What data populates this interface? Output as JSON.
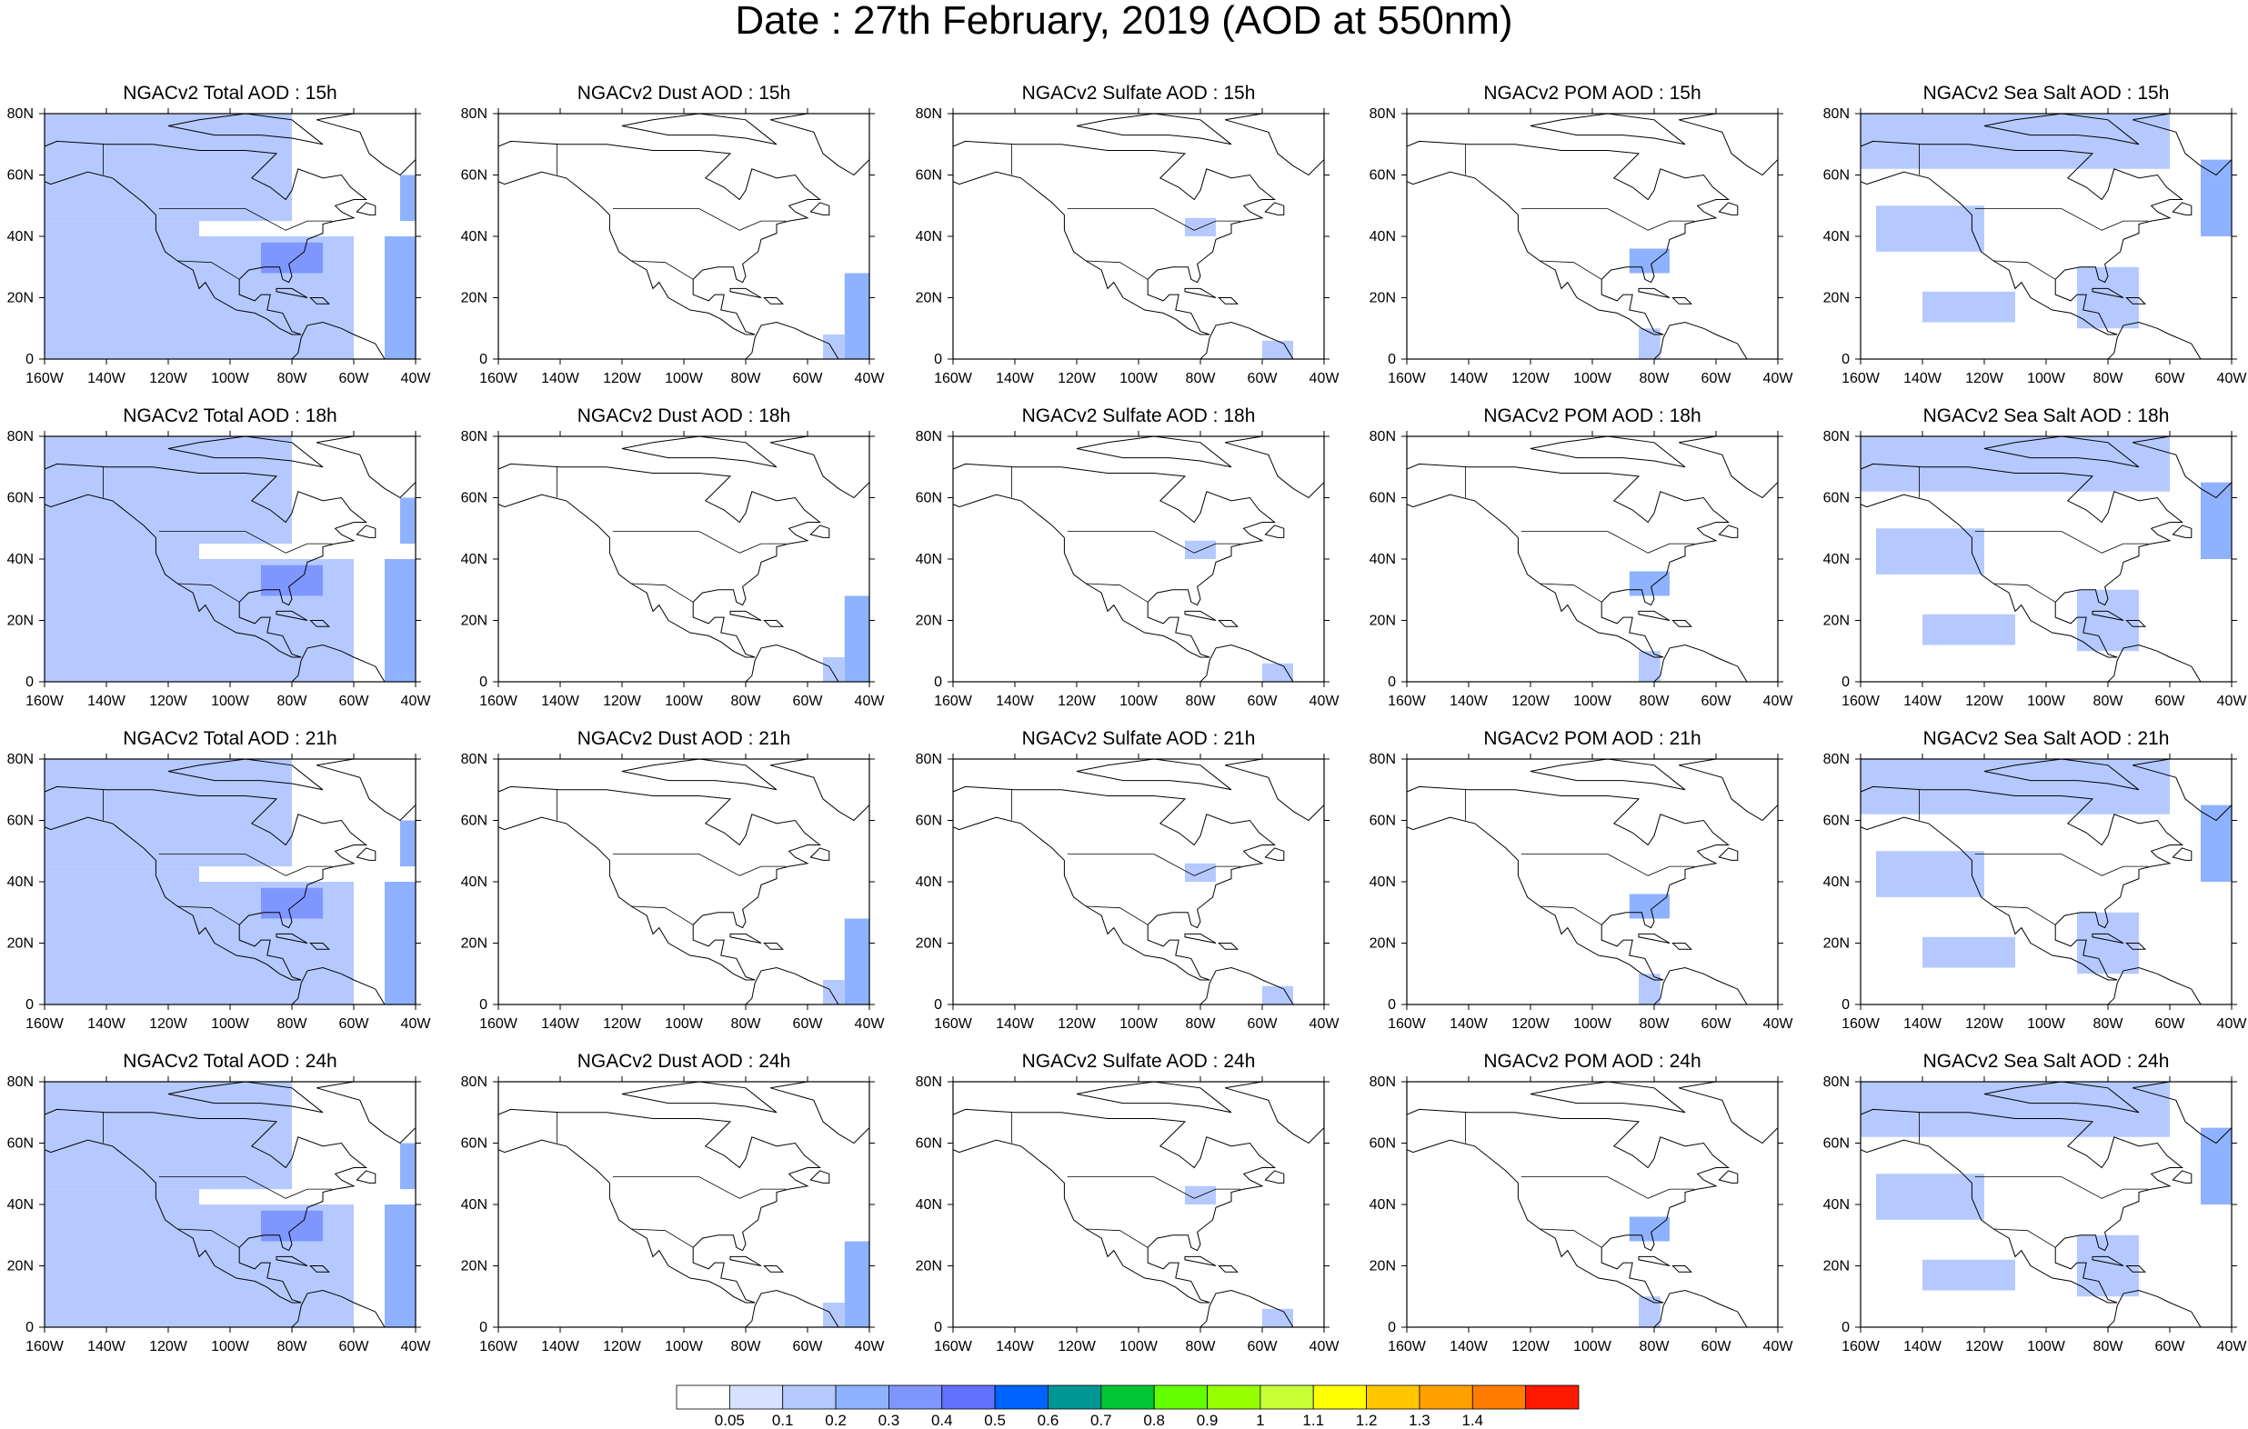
{
  "title": "Date : 27th February, 2019 (AOD at 550nm)",
  "map": {
    "lon_ticks": [
      "160W",
      "140W",
      "120W",
      "100W",
      "80W",
      "60W",
      "40W"
    ],
    "lat_ticks": [
      "0",
      "20N",
      "40N",
      "60N",
      "80N"
    ],
    "lon_range": [
      -160,
      -40
    ],
    "lat_range": [
      0,
      80
    ],
    "ocean_color": "#ffffff",
    "coast_color": "#000000"
  },
  "rows": [
    {
      "hour": "15h",
      "panels": [
        {
          "title": "NGACv2 Total AOD : 15h",
          "species": "total"
        },
        {
          "title": "NGACv2 Dust AOD : 15h",
          "species": "dust"
        },
        {
          "title": "NGACv2 Sulfate AOD : 15h",
          "species": "sulfate"
        },
        {
          "title": "NGACv2 POM AOD : 15h",
          "species": "pom"
        },
        {
          "title": "NGACv2 Sea Salt AOD : 15h",
          "species": "seasalt"
        }
      ]
    },
    {
      "hour": "18h",
      "panels": [
        {
          "title": "NGACv2 Total AOD : 18h",
          "species": "total"
        },
        {
          "title": "NGACv2 Dust AOD : 18h",
          "species": "dust"
        },
        {
          "title": "NGACv2 Sulfate AOD : 18h",
          "species": "sulfate"
        },
        {
          "title": "NGACv2 POM AOD : 18h",
          "species": "pom"
        },
        {
          "title": "NGACv2 Sea Salt AOD : 18h",
          "species": "seasalt"
        }
      ]
    },
    {
      "hour": "21h",
      "panels": [
        {
          "title": "NGACv2 Total AOD : 21h",
          "species": "total"
        },
        {
          "title": "NGACv2 Dust AOD : 21h",
          "species": "dust"
        },
        {
          "title": "NGACv2 Sulfate AOD : 21h",
          "species": "sulfate"
        },
        {
          "title": "NGACv2 POM AOD : 21h",
          "species": "pom"
        },
        {
          "title": "NGACv2 Sea Salt AOD : 21h",
          "species": "seasalt"
        }
      ]
    },
    {
      "hour": "24h",
      "panels": [
        {
          "title": "NGACv2 Total AOD : 24h",
          "species": "total"
        },
        {
          "title": "NGACv2 Dust AOD : 24h",
          "species": "dust"
        },
        {
          "title": "NGACv2 Sulfate AOD : 24h",
          "species": "sulfate"
        },
        {
          "title": "NGACv2 POM AOD : 24h",
          "species": "pom"
        },
        {
          "title": "NGACv2 Sea Salt  AOD : 24h",
          "species": "seasalt"
        }
      ]
    }
  ],
  "colorbar": {
    "labels": [
      "0.05",
      "0.1",
      "0.2",
      "0.3",
      "0.4",
      "0.5",
      "0.6",
      "0.7",
      "0.8",
      "0.9",
      "1",
      "1.1",
      "1.2",
      "1.3",
      "1.4"
    ],
    "colors": [
      "#ffffff",
      "#d6e2ff",
      "#b5c9ff",
      "#8eb2ff",
      "#7f96ff",
      "#6370ff",
      "#0063ff",
      "#009696",
      "#00c633",
      "#63ff00",
      "#96ff00",
      "#c6ff33",
      "#ffff00",
      "#ffc600",
      "#ffa000",
      "#ff7c00",
      "#ff1900"
    ]
  },
  "aod_fields": {
    "total": [
      {
        "lon": [
          -160,
          -80
        ],
        "lat": [
          45,
          80
        ],
        "aod": 0.1
      },
      {
        "lon": [
          -160,
          -110
        ],
        "lat": [
          0,
          45
        ],
        "aod": 0.1
      },
      {
        "lon": [
          -110,
          -60
        ],
        "lat": [
          0,
          40
        ],
        "aod": 0.1
      },
      {
        "lon": [
          -90,
          -70
        ],
        "lat": [
          28,
          38
        ],
        "aod": 0.3
      },
      {
        "lon": [
          -50,
          -40
        ],
        "lat": [
          0,
          40
        ],
        "aod": 0.2
      },
      {
        "lon": [
          -45,
          -40
        ],
        "lat": [
          45,
          60
        ],
        "aod": 0.2
      }
    ],
    "dust": [
      {
        "lon": [
          -48,
          -40
        ],
        "lat": [
          0,
          28
        ],
        "aod": 0.2
      },
      {
        "lon": [
          -55,
          -48
        ],
        "lat": [
          0,
          8
        ],
        "aod": 0.1
      }
    ],
    "sulfate": [
      {
        "lon": [
          -85,
          -75
        ],
        "lat": [
          40,
          46
        ],
        "aod": 0.1
      },
      {
        "lon": [
          -60,
          -50
        ],
        "lat": [
          0,
          6
        ],
        "aod": 0.1
      }
    ],
    "pom": [
      {
        "lon": [
          -88,
          -75
        ],
        "lat": [
          28,
          36
        ],
        "aod": 0.2
      },
      {
        "lon": [
          -85,
          -78
        ],
        "lat": [
          0,
          10
        ],
        "aod": 0.1
      }
    ],
    "seasalt": [
      {
        "lon": [
          -160,
          -60
        ],
        "lat": [
          62,
          80
        ],
        "aod": 0.1
      },
      {
        "lon": [
          -155,
          -120
        ],
        "lat": [
          35,
          50
        ],
        "aod": 0.1
      },
      {
        "lon": [
          -140,
          -110
        ],
        "lat": [
          12,
          22
        ],
        "aod": 0.1
      },
      {
        "lon": [
          -90,
          -70
        ],
        "lat": [
          10,
          30
        ],
        "aod": 0.1
      },
      {
        "lon": [
          -50,
          -40
        ],
        "lat": [
          40,
          65
        ],
        "aod": 0.2
      }
    ]
  }
}
